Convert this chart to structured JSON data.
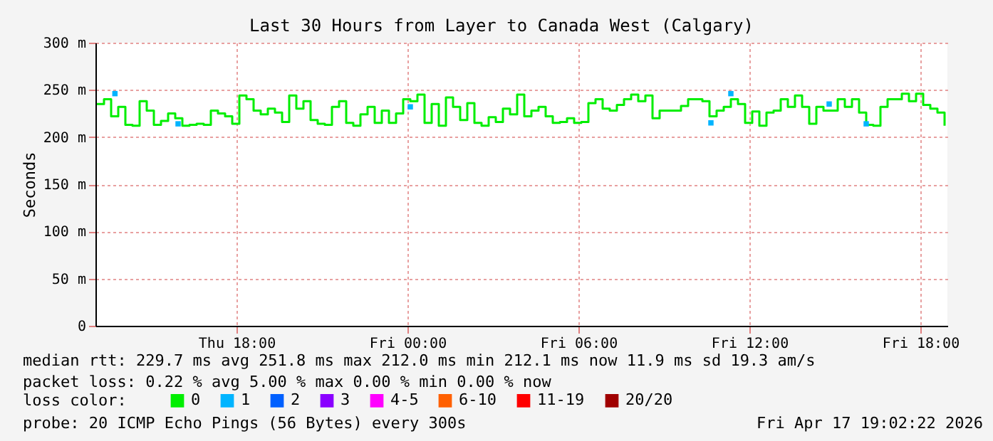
{
  "chart_data": {
    "type": "step",
    "title": "Last 30 Hours from Layer to Canada West (Calgary)",
    "ylabel": "Seconds",
    "legend_title": "loss color:",
    "legend": "bottom",
    "grid": true,
    "xlim": [
      "2026-04-16T13:03",
      "2026-04-17T18:57"
    ],
    "xticks": [
      {
        "value": "2026-04-16T18:00",
        "label": "Thu 18:00"
      },
      {
        "value": "2026-04-17T00:00",
        "label": "Fri 00:00"
      },
      {
        "value": "2026-04-17T06:00",
        "label": "Fri 06:00"
      },
      {
        "value": "2026-04-17T12:00",
        "label": "Fri 12:00"
      },
      {
        "value": "2026-04-17T18:00",
        "label": "Fri 18:00"
      }
    ],
    "ylim": [
      0,
      300
    ],
    "yticks": [
      0,
      {
        "value": 50,
        "label": "50 m"
      },
      {
        "value": 100,
        "label": "100 m"
      },
      {
        "value": 150,
        "label": "150 m"
      },
      {
        "value": 200,
        "label": "200 m"
      },
      {
        "value": 250,
        "label": "250 m"
      },
      {
        "value": 300,
        "label": "300 m"
      }
    ],
    "annotations": [
      "median rtt:  229.7 ms avg  251.8 ms max  212.0 ms min  212.1 ms now  11.9 ms sd  19.3   am/s",
      "packet loss: 0.22 % avg  5.00 % max  0.00 % min  0.00 % now",
      "probe:       20 ICMP Echo Pings (56 Bytes) every 300s",
      "Fri Apr 17 19:02:22 2026"
    ],
    "series": [
      {
        "name": "0",
        "color": "#00ee00",
        "x": [
          "2026-04-16T13:06",
          "2026-04-16T13:21",
          "2026-04-16T13:36",
          "2026-04-16T13:51",
          "2026-04-16T14:06",
          "2026-04-16T14:21",
          "2026-04-16T14:36",
          "2026-04-16T14:51",
          "2026-04-16T15:06",
          "2026-04-16T15:21",
          "2026-04-16T15:36",
          "2026-04-16T15:51",
          "2026-04-16T16:06",
          "2026-04-16T16:21",
          "2026-04-16T16:36",
          "2026-04-16T16:51",
          "2026-04-16T17:06",
          "2026-04-16T17:21",
          "2026-04-16T17:36",
          "2026-04-16T17:51",
          "2026-04-16T18:06",
          "2026-04-16T18:21",
          "2026-04-16T18:36",
          "2026-04-16T18:51",
          "2026-04-16T19:06",
          "2026-04-16T19:21",
          "2026-04-16T19:36",
          "2026-04-16T19:51",
          "2026-04-16T20:06",
          "2026-04-16T20:21",
          "2026-04-16T20:36",
          "2026-04-16T20:51",
          "2026-04-16T21:06",
          "2026-04-16T21:21",
          "2026-04-16T21:36",
          "2026-04-16T21:51",
          "2026-04-16T22:06",
          "2026-04-16T22:21",
          "2026-04-16T22:36",
          "2026-04-16T22:51",
          "2026-04-16T23:06",
          "2026-04-16T23:21",
          "2026-04-16T23:36",
          "2026-04-16T23:51",
          "2026-04-17T00:06",
          "2026-04-17T00:21",
          "2026-04-17T00:36",
          "2026-04-17T00:51",
          "2026-04-17T01:06",
          "2026-04-17T01:21",
          "2026-04-17T01:36",
          "2026-04-17T01:51",
          "2026-04-17T02:06",
          "2026-04-17T02:21",
          "2026-04-17T02:36",
          "2026-04-17T02:51",
          "2026-04-17T03:06",
          "2026-04-17T03:21",
          "2026-04-17T03:36",
          "2026-04-17T03:51",
          "2026-04-17T04:06",
          "2026-04-17T04:21",
          "2026-04-17T04:36",
          "2026-04-17T04:51",
          "2026-04-17T05:06",
          "2026-04-17T05:21",
          "2026-04-17T05:36",
          "2026-04-17T05:51",
          "2026-04-17T06:06",
          "2026-04-17T06:21",
          "2026-04-17T06:36",
          "2026-04-17T06:51",
          "2026-04-17T07:06",
          "2026-04-17T07:21",
          "2026-04-17T07:36",
          "2026-04-17T07:51",
          "2026-04-17T08:06",
          "2026-04-17T08:21",
          "2026-04-17T08:36",
          "2026-04-17T08:51",
          "2026-04-17T09:06",
          "2026-04-17T09:21",
          "2026-04-17T09:36",
          "2026-04-17T09:51",
          "2026-04-17T10:06",
          "2026-04-17T10:21",
          "2026-04-17T10:36",
          "2026-04-17T10:51",
          "2026-04-17T11:06",
          "2026-04-17T11:21",
          "2026-04-17T11:36",
          "2026-04-17T11:51",
          "2026-04-17T12:06",
          "2026-04-17T12:21",
          "2026-04-17T12:36",
          "2026-04-17T12:51",
          "2026-04-17T13:06",
          "2026-04-17T13:21",
          "2026-04-17T13:36",
          "2026-04-17T13:51",
          "2026-04-17T14:06",
          "2026-04-17T14:21",
          "2026-04-17T14:36",
          "2026-04-17T14:51",
          "2026-04-17T15:06",
          "2026-04-17T15:21",
          "2026-04-17T15:36",
          "2026-04-17T15:51",
          "2026-04-17T16:06",
          "2026-04-17T16:21",
          "2026-04-17T16:36",
          "2026-04-17T16:51",
          "2026-04-17T17:06",
          "2026-04-17T17:21",
          "2026-04-17T17:36",
          "2026-04-17T17:51",
          "2026-04-17T18:06",
          "2026-04-17T18:21",
          "2026-04-17T18:36",
          "2026-04-17T18:51"
        ],
        "values": [
          235,
          240,
          222,
          232,
          213,
          212,
          238,
          228,
          213,
          217,
          225,
          220,
          212,
          213,
          214,
          213,
          228,
          225,
          222,
          214,
          244,
          240,
          228,
          224,
          230,
          226,
          216,
          244,
          230,
          238,
          218,
          214,
          213,
          232,
          238,
          215,
          212,
          224,
          232,
          215,
          228,
          215,
          225,
          240,
          238,
          245,
          215,
          235,
          212,
          242,
          232,
          218,
          236,
          215,
          212,
          221,
          216,
          230,
          224,
          245,
          222,
          228,
          232,
          222,
          215,
          216,
          220,
          215,
          216,
          236,
          240,
          230,
          228,
          234,
          240,
          245,
          238,
          244,
          220,
          228,
          228,
          228,
          233,
          240,
          240,
          238,
          222,
          228,
          232,
          240,
          235,
          215,
          227,
          212,
          226,
          228,
          240,
          232,
          244,
          232,
          214,
          232,
          228,
          228,
          240,
          232,
          240,
          226,
          213,
          212,
          232,
          240,
          240,
          246,
          238,
          246,
          234,
          230,
          226,
          212
        ]
      },
      {
        "name": "1",
        "color": "#00b4ff",
        "type": "scatter",
        "marker": "square",
        "x": [
          "2026-04-16T13:44",
          "2026-04-16T15:57",
          "2026-04-17T00:06",
          "2026-04-17T10:39",
          "2026-04-17T11:21",
          "2026-04-17T14:48",
          "2026-04-17T16:06"
        ],
        "values": [
          246,
          214,
          232,
          215,
          246,
          235,
          214
        ]
      },
      {
        "name": "2",
        "color": "#0060ff",
        "type": "scatter"
      },
      {
        "name": "3",
        "color": "#8a00ff",
        "type": "scatter"
      },
      {
        "name": "4-5",
        "color": "#ff00ff",
        "type": "scatter"
      },
      {
        "name": "6-10",
        "color": "#ff6000",
        "type": "scatter"
      },
      {
        "name": "11-19",
        "color": "#ff0000",
        "type": "scatter"
      },
      {
        "name": "20/20",
        "color": "#a00000",
        "type": "scatter"
      }
    ]
  }
}
